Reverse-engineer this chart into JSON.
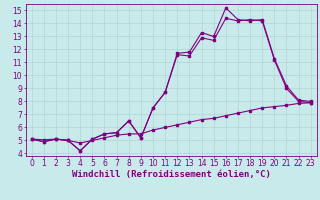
{
  "background_color": "#c8eaea",
  "line_color": "#800080",
  "grid_color": "#b0d4d4",
  "xlabel": "Windchill (Refroidissement éolien,°C)",
  "xlabel_fontsize": 6.5,
  "tick_fontsize": 5.5,
  "xlim": [
    -0.5,
    23.5
  ],
  "ylim": [
    3.8,
    15.5
  ],
  "yticks": [
    4,
    5,
    6,
    7,
    8,
    9,
    10,
    11,
    12,
    13,
    14,
    15
  ],
  "xticks": [
    0,
    1,
    2,
    3,
    4,
    5,
    6,
    7,
    8,
    9,
    10,
    11,
    12,
    13,
    14,
    15,
    16,
    17,
    18,
    19,
    20,
    21,
    22,
    23
  ],
  "line1_x": [
    0,
    1,
    2,
    3,
    4,
    5,
    6,
    7,
    8,
    9,
    10,
    11,
    12,
    13,
    14,
    15,
    16,
    17,
    18,
    19,
    20,
    21,
    22,
    23
  ],
  "line1_y": [
    5.1,
    4.9,
    5.1,
    5.0,
    4.2,
    5.1,
    5.5,
    5.6,
    6.5,
    5.2,
    7.5,
    8.7,
    11.7,
    11.8,
    13.3,
    13.0,
    15.2,
    14.3,
    14.2,
    14.3,
    11.3,
    9.2,
    8.1,
    8.0
  ],
  "line2_x": [
    0,
    1,
    2,
    3,
    4,
    5,
    6,
    7,
    8,
    9,
    10,
    11,
    12,
    13,
    14,
    15,
    16,
    17,
    18,
    19,
    20,
    21,
    22,
    23
  ],
  "line2_y": [
    5.1,
    4.9,
    5.1,
    5.0,
    4.2,
    5.1,
    5.5,
    5.6,
    6.5,
    5.2,
    7.5,
    8.7,
    11.6,
    11.5,
    12.9,
    12.7,
    14.4,
    14.2,
    14.3,
    14.2,
    11.2,
    9.0,
    8.0,
    7.9
  ],
  "line3_x": [
    0,
    1,
    2,
    3,
    4,
    5,
    6,
    7,
    8,
    9,
    10,
    11,
    12,
    13,
    14,
    15,
    16,
    17,
    18,
    19,
    20,
    21,
    22,
    23
  ],
  "line3_y": [
    5.1,
    5.05,
    5.1,
    5.0,
    4.8,
    5.0,
    5.2,
    5.4,
    5.5,
    5.5,
    5.8,
    6.0,
    6.2,
    6.4,
    6.6,
    6.7,
    6.9,
    7.1,
    7.3,
    7.5,
    7.6,
    7.7,
    7.85,
    7.9
  ]
}
